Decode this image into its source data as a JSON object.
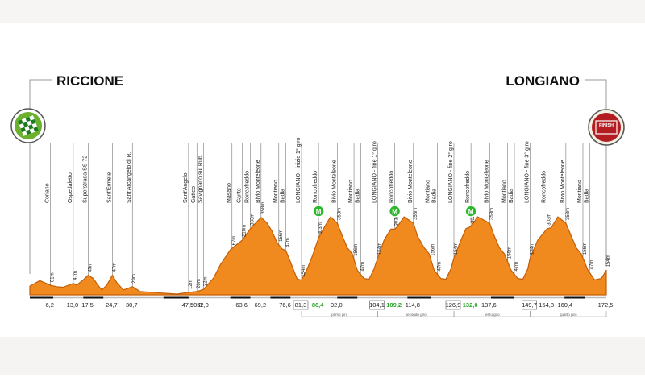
{
  "chart_data": {
    "type": "area",
    "start": "RICCIONE",
    "finish": "LONGIANO",
    "finish_badge": "FINISH",
    "xlim": [
      0,
      172.5
    ],
    "ylim": [
      0,
      420
    ],
    "colors": {
      "fill": "#f08a1f",
      "stroke": "#c25e08",
      "marker": "#2eb82e"
    },
    "profile": [
      [
        0,
        32
      ],
      [
        3,
        52
      ],
      [
        6.2,
        35
      ],
      [
        8,
        30
      ],
      [
        10,
        28
      ],
      [
        13,
        42
      ],
      [
        14,
        36
      ],
      [
        16,
        55
      ],
      [
        17.5,
        72
      ],
      [
        19,
        60
      ],
      [
        20,
        42
      ],
      [
        21.5,
        18
      ],
      [
        23,
        35
      ],
      [
        24.7,
        72
      ],
      [
        26,
        45
      ],
      [
        28,
        18
      ],
      [
        30.7,
        30
      ],
      [
        33,
        12
      ],
      [
        38,
        8
      ],
      [
        44,
        3
      ],
      [
        47.5,
        9
      ],
      [
        50,
        12
      ],
      [
        52,
        20
      ],
      [
        55,
        62
      ],
      [
        57,
        110
      ],
      [
        60,
        165
      ],
      [
        63.6,
        200
      ],
      [
        66,
        242
      ],
      [
        69.2,
        283
      ],
      [
        71,
        262
      ],
      [
        72.5,
        232
      ],
      [
        74,
        190
      ],
      [
        75.5,
        168
      ],
      [
        76.6,
        162
      ],
      [
        78,
        120
      ],
      [
        80,
        58
      ],
      [
        81.3,
        54
      ],
      [
        83,
        95
      ],
      [
        84.5,
        140
      ],
      [
        86.4,
        208
      ],
      [
        88,
        245
      ],
      [
        90,
        285
      ],
      [
        92,
        262
      ],
      [
        93.5,
        215
      ],
      [
        95,
        172
      ],
      [
        96.5,
        150
      ],
      [
        98,
        90
      ],
      [
        100,
        60
      ],
      [
        101.5,
        57
      ],
      [
        103,
        95
      ],
      [
        104.1,
        135
      ],
      [
        106,
        200
      ],
      [
        108,
        240
      ],
      [
        109.2,
        240
      ],
      [
        110,
        250
      ],
      [
        112,
        285
      ],
      [
        114.8,
        262
      ],
      [
        116,
        215
      ],
      [
        118,
        172
      ],
      [
        119.5,
        150
      ],
      [
        121,
        90
      ],
      [
        123,
        60
      ],
      [
        124.5,
        57
      ],
      [
        126,
        95
      ],
      [
        126.9,
        135
      ],
      [
        129,
        200
      ],
      [
        130.5,
        242
      ],
      [
        132,
        250
      ],
      [
        134,
        285
      ],
      [
        137.6,
        262
      ],
      [
        139,
        215
      ],
      [
        140.5,
        172
      ],
      [
        142,
        150
      ],
      [
        144,
        90
      ],
      [
        146,
        60
      ],
      [
        147.5,
        57
      ],
      [
        149,
        95
      ],
      [
        149.7,
        135
      ],
      [
        152,
        200
      ],
      [
        154.8,
        242
      ],
      [
        156,
        245
      ],
      [
        158,
        285
      ],
      [
        160.4,
        262
      ],
      [
        162,
        215
      ],
      [
        163.5,
        172
      ],
      [
        165,
        150
      ],
      [
        167,
        90
      ],
      [
        169,
        55
      ],
      [
        171,
        60
      ],
      [
        172.5,
        90
      ]
    ],
    "ticks": [
      "6,2",
      "13,0",
      "17,5",
      "24,7",
      "30,7",
      "47,5",
      "50,0",
      "52,0",
      "63,6",
      "69,2",
      "76,6",
      "81,3",
      "86,4",
      "92,0",
      "104,1",
      "109,2",
      "114,8",
      "126,9",
      "132,0",
      "137,6",
      "149,7",
      "154,8",
      "160,4",
      "172,5"
    ],
    "tick_km": [
      6.2,
      13.0,
      17.5,
      24.7,
      30.7,
      47.5,
      50.0,
      52.0,
      63.6,
      69.2,
      76.6,
      81.3,
      86.4,
      92.0,
      104.1,
      109.2,
      114.8,
      126.9,
      132.0,
      137.6,
      149.7,
      154.8,
      160.4,
      172.5
    ],
    "green_ticks": [
      "86,4",
      "109,2",
      "132,0"
    ],
    "boxed_ticks": [
      "81,3",
      "104,1",
      "126,9",
      "149,7"
    ],
    "waypoints": [
      {
        "km": 6.2,
        "name": "Coriano",
        "alt": "81m"
      },
      {
        "km": 13.0,
        "name": "Ospedaletto",
        "alt": "47m"
      },
      {
        "km": 17.5,
        "name": "Superstrada SS 72",
        "alt": "45m"
      },
      {
        "km": 24.7,
        "name": "Sant'Ermete",
        "alt": "47m"
      },
      {
        "km": 30.7,
        "name": "Sant'Arcangelo di R.",
        "alt": "29m"
      },
      {
        "km": 47.5,
        "name": "Sant'Angelo",
        "alt": "12m"
      },
      {
        "km": 50.0,
        "name": "Gatteo",
        "alt": "26m"
      },
      {
        "km": 52.0,
        "name": "Savignano sul Rub.",
        "alt": "32m"
      },
      {
        "km": 60.5,
        "name": "Masano",
        "alt": "67m"
      },
      {
        "km": 63.6,
        "name": "Canto",
        "alt": "210m"
      },
      {
        "km": 66.0,
        "name": "Roncofreddo",
        "alt": "303m"
      },
      {
        "km": 69.2,
        "name": "Bivio Monteleone",
        "alt": "358m"
      },
      {
        "km": 74.5,
        "name": "Montiano",
        "alt": "156m"
      },
      {
        "km": 76.6,
        "name": "Badia",
        "alt": "47m"
      },
      {
        "km": 81.3,
        "name": "LONGIANO - inizio 1° giro",
        "alt": "154m"
      },
      {
        "km": 86.4,
        "name": "Roncofreddo",
        "alt": "303m"
      },
      {
        "km": 92.0,
        "name": "Bivio Monteleone",
        "alt": "358m"
      },
      {
        "km": 97.0,
        "name": "Montiano",
        "alt": "156m"
      },
      {
        "km": 99.0,
        "name": "Badia",
        "alt": "47m"
      },
      {
        "km": 104.1,
        "name": "LONGIANO - fine 1° giro",
        "alt": "154m"
      },
      {
        "km": 109.2,
        "name": "Roncofreddo",
        "alt": "303m"
      },
      {
        "km": 114.8,
        "name": "Bivio Monteleone",
        "alt": "358m"
      },
      {
        "km": 120.0,
        "name": "Montiano",
        "alt": "156m"
      },
      {
        "km": 122.0,
        "name": "Badia",
        "alt": "47m"
      },
      {
        "km": 126.9,
        "name": "LONGIANO - fine 2° giro",
        "alt": "154m"
      },
      {
        "km": 132.0,
        "name": "Roncofreddo",
        "alt": "303m"
      },
      {
        "km": 137.6,
        "name": "Bivio Monteleone",
        "alt": "358m"
      },
      {
        "km": 143.0,
        "name": "Montiano",
        "alt": "156m"
      },
      {
        "km": 145.0,
        "name": "Badia",
        "alt": "47m"
      },
      {
        "km": 149.7,
        "name": "LONGIANO - fine 3° giro",
        "alt": "154m"
      },
      {
        "km": 154.8,
        "name": "Roncofreddo",
        "alt": "303m"
      },
      {
        "km": 160.4,
        "name": "Bivio Monteleone",
        "alt": "358m"
      },
      {
        "km": 165.5,
        "name": "Montiano",
        "alt": "156m"
      },
      {
        "km": 167.5,
        "name": "Badia",
        "alt": "47m"
      },
      {
        "km": 172.5,
        "name": "",
        "alt": "154m"
      }
    ],
    "markers": [
      {
        "km": 86.4,
        "label": "M"
      },
      {
        "km": 109.2,
        "label": "M"
      },
      {
        "km": 132.0,
        "label": "M"
      }
    ],
    "laps": [
      {
        "from": 81.3,
        "to": 104.1,
        "label": "primo giro"
      },
      {
        "from": 104.1,
        "to": 126.9,
        "label": "secondo giro"
      },
      {
        "from": 126.9,
        "to": 149.7,
        "label": "terzo giro"
      },
      {
        "from": 149.7,
        "to": 172.5,
        "label": "quarto giro"
      }
    ],
    "dark_segments": [
      [
        0,
        7
      ],
      [
        16,
        22
      ],
      [
        40,
        47.5
      ],
      [
        60,
        66
      ],
      [
        72,
        78
      ],
      [
        92,
        98
      ],
      [
        113,
        120
      ],
      [
        138,
        145
      ],
      [
        160,
        166
      ]
    ]
  }
}
